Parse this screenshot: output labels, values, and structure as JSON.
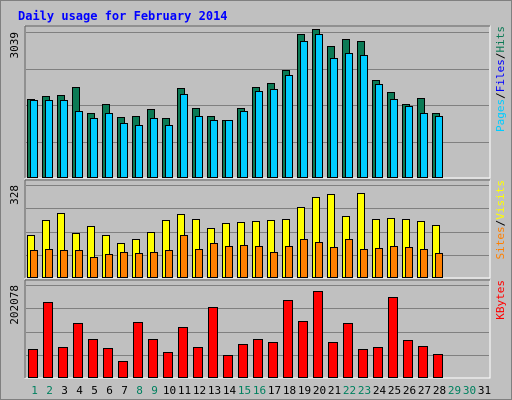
{
  "chart_data": {
    "type": "bar",
    "title": "Daily usage for February 2014",
    "x": [
      "1",
      "2",
      "3",
      "4",
      "5",
      "6",
      "7",
      "8",
      "9",
      "10",
      "11",
      "12",
      "13",
      "14",
      "15",
      "16",
      "17",
      "18",
      "19",
      "20",
      "21",
      "22",
      "23",
      "24",
      "25",
      "26",
      "27",
      "28",
      "29",
      "30",
      "31"
    ],
    "weekend_days": [
      1,
      2,
      8,
      9,
      15,
      16,
      22,
      23,
      29,
      30
    ],
    "no_data_days": [
      29,
      30,
      31
    ],
    "panels": [
      {
        "max_label": "3039",
        "ylim": [
          0,
          3039
        ],
        "series": [
          {
            "name": "Pages",
            "color": "#00ccff",
            "values": [
              1620,
              1620,
              1620,
              1400,
              1250,
              1350,
              1150,
              1100,
              1250,
              1100,
              1750,
              1300,
              1200,
              1200,
              1400,
              1820,
              1850,
              2150,
              2850,
              3000,
              2500,
              2600,
              2550,
              1950,
              1650,
              1500,
              1350,
              1300
            ]
          },
          {
            "name": "Hits",
            "color": "#0b7a55",
            "values": [
              1650,
              1700,
              1720,
              1900,
              1350,
              1530,
              1280,
              1300,
              1430,
              1250,
              1880,
              1450,
              1300,
              1200,
              1450,
              1900,
              1970,
              2250,
              3000,
              3100,
              2750,
              2900,
              2850,
              2050,
              1800,
              1550,
              1660,
              1350
            ]
          }
        ]
      },
      {
        "max_label": "328",
        "ylim": [
          0,
          328
        ],
        "series": [
          {
            "name": "Sites",
            "color": "#ff8000",
            "values": [
              97,
              103,
              100,
              97,
              73,
              85,
              90,
              87,
              93,
              97,
              150,
              103,
              123,
              113,
              117,
              113,
              90,
              113,
              137,
              127,
              110,
              137,
              103,
              107,
              113,
              110,
              103,
              87
            ]
          },
          {
            "name": "Visits",
            "color": "#ffff00",
            "values": [
              150,
              203,
              230,
              157,
              183,
              150,
              123,
              137,
              163,
              203,
              227,
              207,
              177,
              193,
              197,
              200,
              203,
              207,
              250,
              287,
              297,
              217,
              300,
              207,
              213,
              207,
              200,
              187
            ]
          }
        ]
      },
      {
        "max_label": "202078",
        "ylim": [
          0,
          202078
        ],
        "series": [
          {
            "name": "KBytes",
            "color": "#ff0000",
            "values": [
              62000,
              165000,
              67000,
              119000,
              84000,
              65000,
              36000,
              122000,
              85000,
              56000,
              110000,
              67000,
              154000,
              50000,
              74000,
              84000,
              79000,
              170000,
              123000,
              189000,
              79000,
              120000,
              64000,
              68000,
              176000,
              82000,
              70000,
              53000
            ]
          }
        ]
      }
    ],
    "right_labels": {
      "top": [
        "Pages",
        "/",
        "Files",
        "/",
        "Hits"
      ],
      "middle": [
        "Sites",
        "/",
        "Visits"
      ],
      "bottom": [
        "KBytes"
      ]
    },
    "colors": {
      "background": "#c0c0c0",
      "title": "#0000ff",
      "gridline": "#808080",
      "weekday_label": "#000000",
      "weekend_label": "#00805f",
      "pages": "#00ccff",
      "files": "#0000ff",
      "hits": "#0b7a55",
      "sites": "#ff8000",
      "visits": "#ffff00",
      "kbytes": "#ff0000"
    }
  }
}
